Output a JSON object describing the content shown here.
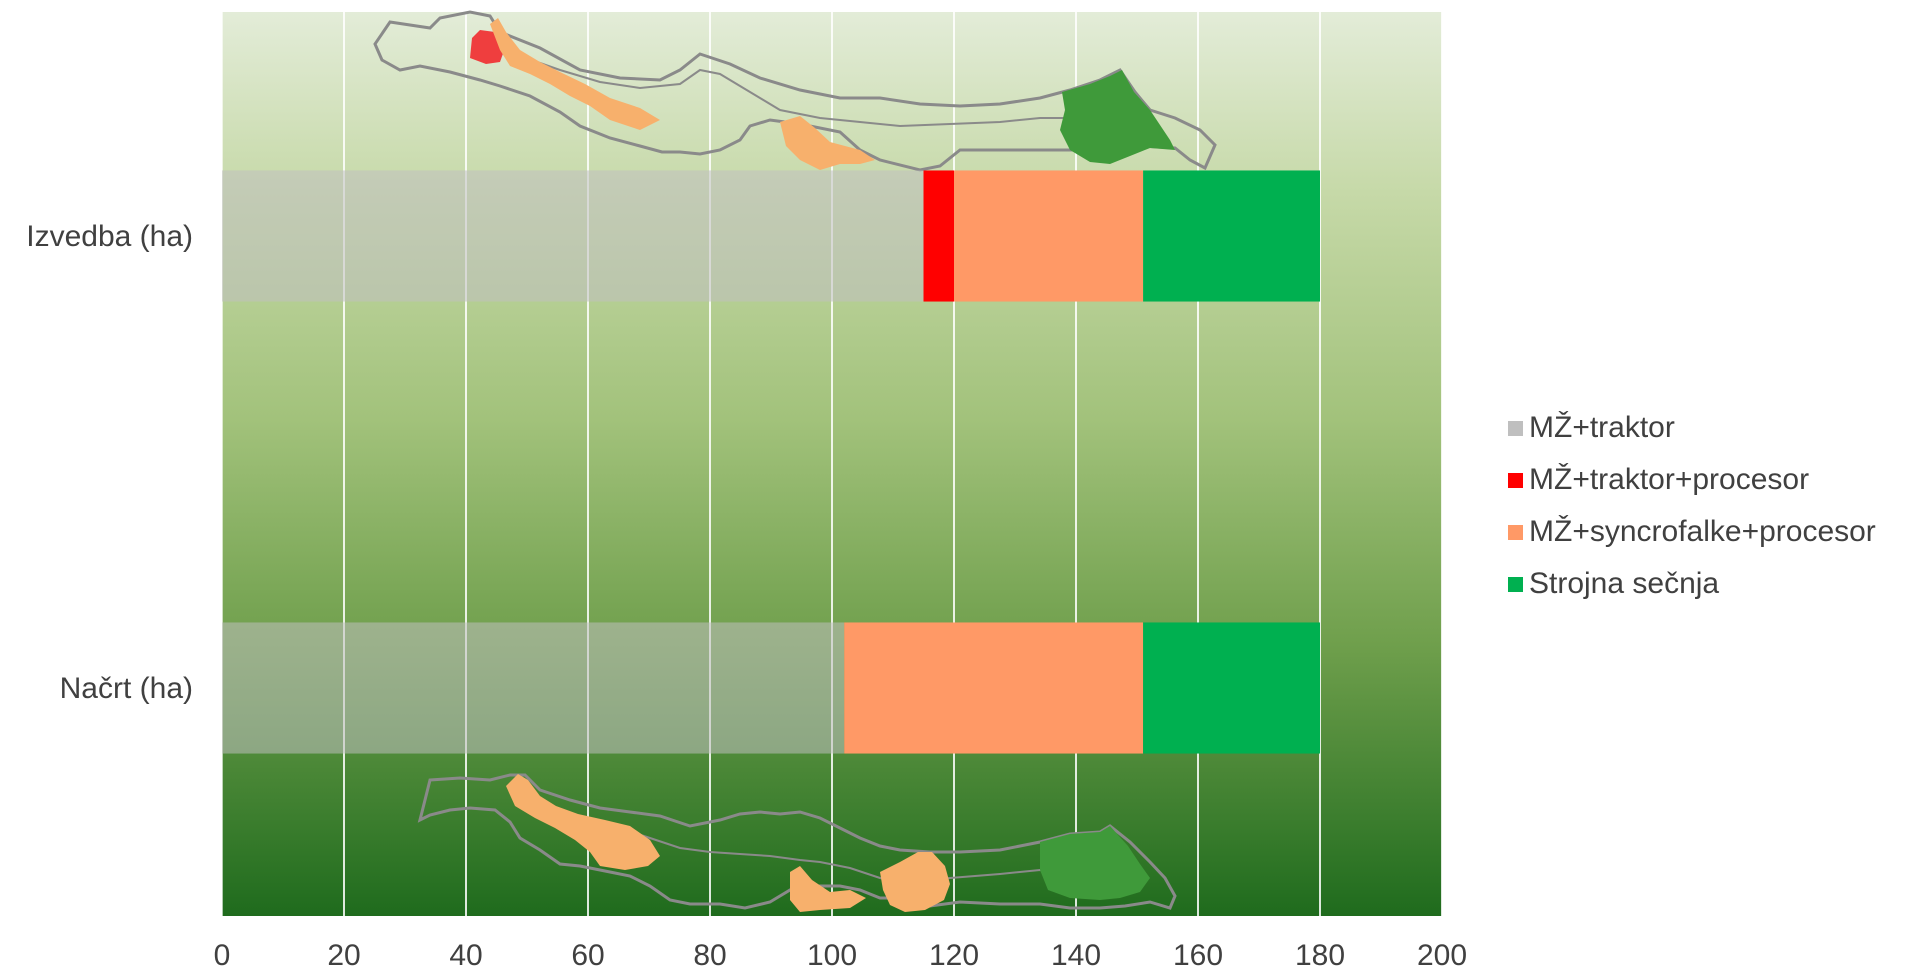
{
  "chart_data": {
    "type": "bar",
    "orientation": "horizontal",
    "stacked": true,
    "categories": [
      "Izvedba (ha)",
      "Načrt (ha)"
    ],
    "series": [
      {
        "name": "MŽ+traktor",
        "values": [
          115,
          102
        ],
        "color": "#BFBFBF"
      },
      {
        "name": "MŽ+traktor+procesor",
        "values": [
          5,
          0
        ],
        "color": "#FF0000"
      },
      {
        "name": "MŽ+syncrofalke+procesor",
        "values": [
          31,
          49
        ],
        "color": "#FF9966"
      },
      {
        "name": "Strojna sečnja",
        "values": [
          29,
          29
        ],
        "color": "#00B050"
      }
    ],
    "xlim": [
      0,
      200
    ],
    "xticks": [
      "0",
      "20",
      "40",
      "60",
      "80",
      "100",
      "120",
      "140",
      "160",
      "180",
      "200"
    ],
    "grid": true,
    "legend_position": "right",
    "background": "green gradient with forest compartment map illustrations",
    "xlabel": "",
    "ylabel": ""
  }
}
